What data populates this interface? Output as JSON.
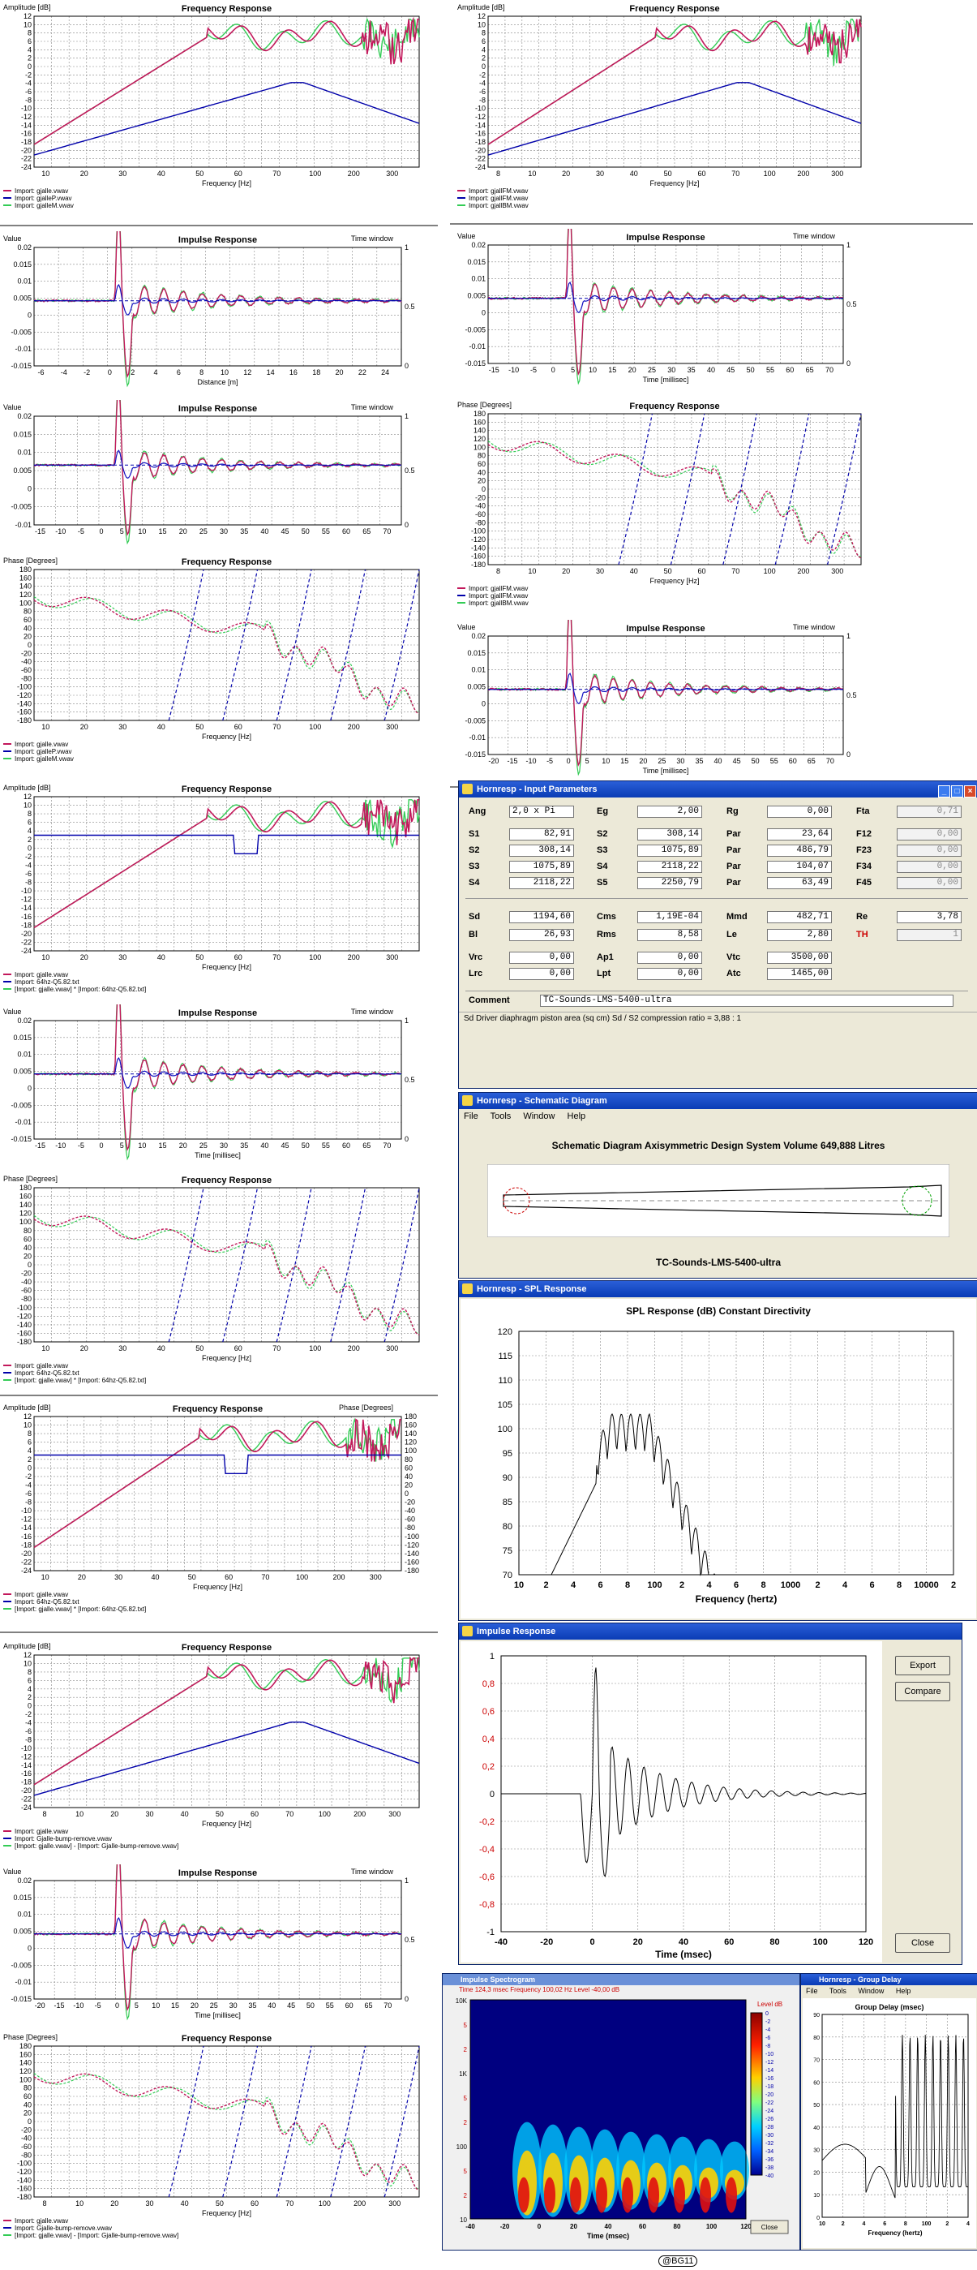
{
  "colors": {
    "pink": "#c2185b",
    "green": "#33cc55",
    "blue": "#1010c0",
    "dblue": "#0000aa",
    "grid": "#555555"
  },
  "charts_left": [
    {
      "id": "L1",
      "title": "Frequency Response",
      "ylabel": "Amplitude [dB]",
      "xlabel": "Frequency [Hz]",
      "yticks": [
        "12",
        "10",
        "8",
        "6",
        "4",
        "2",
        "0",
        "-2",
        "-4",
        "-6",
        "-8",
        "-10",
        "-12",
        "-14",
        "-16",
        "-18",
        "-20",
        "-22",
        "-24"
      ],
      "xticks": [
        "10",
        "20",
        "30",
        "40",
        "50",
        "60",
        "70",
        "100",
        "200",
        "300"
      ],
      "legend": [
        "Import: gjalle.vwav",
        "Import: gjalleP.vwav",
        "Import: gjalleM.vwav"
      ]
    },
    {
      "id": "L2",
      "title": "Impulse Response",
      "ylabel": "Value",
      "y2label": "Time window",
      "xlabel": "Distance [m]",
      "yticks": [
        "0.02",
        "0.015",
        "0.01",
        "0.005",
        "0",
        "-0.005",
        "-0.01",
        "-0.015"
      ],
      "xticks": [
        "-6",
        "-4",
        "-2",
        "0",
        "2",
        "4",
        "6",
        "8",
        "10",
        "12",
        "14",
        "16",
        "18",
        "20",
        "22",
        "24"
      ],
      "y2ticks": [
        "1",
        "0.5",
        "0"
      ]
    },
    {
      "id": "L3",
      "title": "Impulse Response",
      "ylabel": "Value",
      "y2label": "Time window",
      "xlabel": "",
      "yticks": [
        "0.02",
        "0.015",
        "0.01",
        "0.005",
        "0",
        "-0.005",
        "-0.01"
      ],
      "xticks": [
        "-15",
        "-10",
        "-5",
        "0",
        "5",
        "10",
        "15",
        "20",
        "25",
        "30",
        "35",
        "40",
        "45",
        "50",
        "55",
        "60",
        "65",
        "70"
      ],
      "y2ticks": [
        "1",
        "0.5",
        "0"
      ]
    },
    {
      "id": "L4",
      "title": "Frequency Response",
      "ylabel": "Phase [Degrees]",
      "xlabel": "Frequency [Hz]",
      "yticks": [
        "180",
        "160",
        "140",
        "120",
        "100",
        "80",
        "60",
        "40",
        "20",
        "0",
        "-20",
        "-40",
        "-60",
        "-80",
        "-100",
        "-120",
        "-140",
        "-160",
        "-180"
      ],
      "xticks": [
        "10",
        "20",
        "30",
        "40",
        "50",
        "60",
        "70",
        "100",
        "200",
        "300"
      ],
      "legend": [
        "Import: gjalle.vwav",
        "Import: gjalleP.vwav",
        "Import: gjalleM.vwav"
      ]
    },
    {
      "id": "L5",
      "title": "Frequency Response",
      "ylabel": "Amplitude [dB]",
      "xlabel": "Frequency [Hz]",
      "yticks": [
        "12",
        "10",
        "8",
        "6",
        "4",
        "2",
        "0",
        "-2",
        "-4",
        "-6",
        "-8",
        "-10",
        "-12",
        "-14",
        "-16",
        "-18",
        "-20",
        "-22",
        "-24"
      ],
      "xticks": [
        "10",
        "20",
        "30",
        "40",
        "50",
        "60",
        "70",
        "100",
        "200",
        "300"
      ],
      "legend": [
        "Import: gjalle.vwav",
        "Import: 64hz-Q5.82.txt",
        "[Import: gjalle.vwav] * [Import: 64hz-Q5.82.txt]"
      ]
    },
    {
      "id": "L6",
      "title": "Impulse Response",
      "ylabel": "Value",
      "y2label": "Time window",
      "xlabel": "Time [millisec]",
      "yticks": [
        "0.02",
        "0.015",
        "0.01",
        "0.005",
        "0",
        "-0.005",
        "-0.01",
        "-0.015"
      ],
      "xticks": [
        "-15",
        "-10",
        "-5",
        "0",
        "5",
        "10",
        "15",
        "20",
        "25",
        "30",
        "35",
        "40",
        "45",
        "50",
        "55",
        "60",
        "65",
        "70"
      ],
      "y2ticks": [
        "1",
        "0.5",
        "0"
      ]
    },
    {
      "id": "L7",
      "title": "Frequency Response",
      "ylabel": "Phase [Degrees]",
      "xlabel": "Frequency [Hz]",
      "yticks": [
        "180",
        "160",
        "140",
        "120",
        "100",
        "80",
        "60",
        "40",
        "20",
        "0",
        "-20",
        "-40",
        "-60",
        "-80",
        "-100",
        "-120",
        "-140",
        "-160",
        "-180"
      ],
      "xticks": [
        "10",
        "20",
        "30",
        "40",
        "50",
        "60",
        "70",
        "100",
        "200",
        "300"
      ],
      "legend": [
        "Import: gjalle.vwav",
        "Import: 64hz-Q5.82.txt",
        "[Import: gjalle.vwav] * [Import: 64hz-Q5.82.txt]"
      ]
    },
    {
      "id": "L8",
      "title": "Frequency Response",
      "ylabel": "Amplitude [dB]",
      "y2label": "Phase [Degrees]",
      "xlabel": "Frequency [Hz]",
      "yticks": [
        "12",
        "10",
        "8",
        "6",
        "4",
        "2",
        "0",
        "-2",
        "-4",
        "-6",
        "-8",
        "-10",
        "-12",
        "-14",
        "-16",
        "-18",
        "-20",
        "-22",
        "-24"
      ],
      "y2ticks": [
        "180",
        "160",
        "140",
        "120",
        "100",
        "80",
        "60",
        "40",
        "20",
        "0",
        "-20",
        "-40",
        "-60",
        "-80",
        "-100",
        "-120",
        "-140",
        "-160",
        "-180"
      ],
      "xticks": [
        "10",
        "20",
        "30",
        "40",
        "50",
        "60",
        "70",
        "100",
        "200",
        "300"
      ],
      "legend": [
        "Import: gjalle.vwav",
        "Import: 64hz-Q5.82.txt",
        "[Import: gjalle.vwav] * [Import: 64hz-Q5.82.txt]"
      ]
    },
    {
      "id": "L9",
      "title": "Frequency Response",
      "ylabel": "Amplitude [dB]",
      "xlabel": "Frequency [Hz]",
      "yticks": [
        "12",
        "10",
        "8",
        "6",
        "4",
        "2",
        "0",
        "-2",
        "-4",
        "-6",
        "-8",
        "-10",
        "-12",
        "-14",
        "-16",
        "-18",
        "-20",
        "-22",
        "-24"
      ],
      "xticks": [
        "8",
        "10",
        "20",
        "30",
        "40",
        "50",
        "60",
        "70",
        "100",
        "200",
        "300"
      ],
      "legend": [
        "Import: gjalle.vwav",
        "Import: Gjalle-bump-remove.vwav",
        "[Import: gjalle.vwav] - [Import: Gjalle-bump-remove.vwav]"
      ]
    },
    {
      "id": "L10",
      "title": "Impulse Response",
      "ylabel": "Value",
      "y2label": "Time window",
      "xlabel": "Time [millisec]",
      "yticks": [
        "0.02",
        "0.015",
        "0.01",
        "0.005",
        "0",
        "-0.005",
        "-0.01",
        "-0.015"
      ],
      "xticks": [
        "-20",
        "-15",
        "-10",
        "-5",
        "0",
        "5",
        "10",
        "15",
        "20",
        "25",
        "30",
        "35",
        "40",
        "45",
        "50",
        "55",
        "60",
        "65",
        "70"
      ],
      "y2ticks": [
        "1",
        "0.5",
        "0"
      ]
    },
    {
      "id": "L11",
      "title": "Frequency Response",
      "ylabel": "Phase [Degrees]",
      "xlabel": "Frequency [Hz]",
      "yticks": [
        "180",
        "160",
        "140",
        "120",
        "100",
        "80",
        "60",
        "40",
        "20",
        "0",
        "-20",
        "-40",
        "-60",
        "-80",
        "-100",
        "-120",
        "-140",
        "-160",
        "-180"
      ],
      "xticks": [
        "8",
        "10",
        "20",
        "30",
        "40",
        "50",
        "60",
        "70",
        "100",
        "200",
        "300"
      ],
      "legend": [
        "Import: gjalle.vwav",
        "Import: Gjalle-bump-remove.vwav",
        "[Import: gjalle.vwav] - [Import: Gjalle-bump-remove.vwav]"
      ]
    }
  ],
  "charts_right": [
    {
      "id": "R1",
      "title": "Frequency Response",
      "ylabel": "Amplitude [dB]",
      "xlabel": "Frequency [Hz]",
      "yticks": [
        "12",
        "10",
        "8",
        "6",
        "4",
        "2",
        "0",
        "-2",
        "-4",
        "-6",
        "-8",
        "-10",
        "-12",
        "-14",
        "-16",
        "-18",
        "-20",
        "-22",
        "-24"
      ],
      "xticks": [
        "8",
        "10",
        "20",
        "30",
        "40",
        "50",
        "60",
        "70",
        "100",
        "200",
        "300"
      ],
      "legend": [
        "Import: gjallFM.vwav",
        "Import: gjallFM.vwav",
        "Import: gjallBM.vwav"
      ]
    },
    {
      "id": "R2",
      "title": "Impulse Response",
      "ylabel": "Value",
      "y2label": "Time window",
      "xlabel": "Time [millisec]",
      "yticks": [
        "0.02",
        "0.015",
        "0.01",
        "0.005",
        "0",
        "-0.005",
        "-0.01",
        "-0.015"
      ],
      "xticks": [
        "-15",
        "-10",
        "-5",
        "0",
        "5",
        "10",
        "15",
        "20",
        "25",
        "30",
        "35",
        "40",
        "45",
        "50",
        "55",
        "60",
        "65",
        "70"
      ],
      "y2ticks": [
        "1",
        "0.5",
        "0"
      ]
    },
    {
      "id": "R3",
      "title": "Frequency Response",
      "ylabel": "Phase [Degrees]",
      "xlabel": "Frequency [Hz]",
      "yticks": [
        "180",
        "160",
        "140",
        "120",
        "100",
        "80",
        "60",
        "40",
        "20",
        "0",
        "-20",
        "-40",
        "-60",
        "-80",
        "-100",
        "-120",
        "-140",
        "-160",
        "-180"
      ],
      "xticks": [
        "8",
        "10",
        "20",
        "30",
        "40",
        "50",
        "60",
        "70",
        "100",
        "200",
        "300"
      ],
      "legend": [
        "Import: gjallFM.vwav",
        "Import: gjallFM.vwav",
        "Import: gjallBM.vwav"
      ]
    },
    {
      "id": "R4",
      "title": "Impulse Response",
      "ylabel": "Value",
      "y2label": "Time window",
      "xlabel": "Time [millisec]",
      "yticks": [
        "0.02",
        "0.015",
        "0.01",
        "0.005",
        "0",
        "-0.005",
        "-0.01",
        "-0.015"
      ],
      "xticks": [
        "-20",
        "-15",
        "-10",
        "-5",
        "0",
        "5",
        "10",
        "15",
        "20",
        "25",
        "30",
        "35",
        "40",
        "45",
        "50",
        "55",
        "60",
        "65",
        "70"
      ],
      "y2ticks": [
        "1",
        "0.5",
        "0"
      ]
    }
  ],
  "input_params": {
    "title": "Hornresp - Input Parameters",
    "rows": [
      [
        [
          "Ang",
          "2,0 x Pi"
        ],
        [
          "Eg",
          "2,00"
        ],
        [
          "Rg",
          "0,00"
        ],
        [
          "Fta",
          "0,71"
        ]
      ],
      [
        [
          "S1",
          "82,91"
        ],
        [
          "S2",
          "308,14"
        ],
        [
          "Par",
          "23,64"
        ],
        [
          "F12",
          "0,00"
        ]
      ],
      [
        [
          "S2",
          "308,14"
        ],
        [
          "S3",
          "1075,89"
        ],
        [
          "Par",
          "486,79"
        ],
        [
          "F23",
          "0,00"
        ]
      ],
      [
        [
          "S3",
          "1075,89"
        ],
        [
          "S4",
          "2118,22"
        ],
        [
          "Par",
          "104,07"
        ],
        [
          "F34",
          "0,00"
        ]
      ],
      [
        [
          "S4",
          "2118,22"
        ],
        [
          "S5",
          "2250,79"
        ],
        [
          "Par",
          "63,49"
        ],
        [
          "F45",
          "0,00"
        ]
      ],
      [
        [
          "Sd",
          "1194,60"
        ],
        [
          "Cms",
          "1,19E-04"
        ],
        [
          "Mmd",
          "482,71"
        ],
        [
          "Re",
          "3,78"
        ]
      ],
      [
        [
          "Bl",
          "26,93"
        ],
        [
          "Rms",
          "8,58"
        ],
        [
          "Le",
          "2,80"
        ],
        [
          "TH",
          "1"
        ]
      ],
      [
        [
          "Vrc",
          "0,00"
        ],
        [
          "Ap1",
          "0,00"
        ],
        [
          "Vtc",
          "3500,00"
        ],
        [
          "",
          ""
        ]
      ],
      [
        [
          "Lrc",
          "0,00"
        ],
        [
          "Lpt",
          "0,00"
        ],
        [
          "Atc",
          "1465,00"
        ],
        [
          "",
          ""
        ]
      ]
    ],
    "comment_label": "Comment",
    "comment_value": "TC-Sounds-LMS-5400-ultra",
    "status": "Sd   Driver diaphragm piston area  (sq cm)   Sd / S2 compression ratio = 3,88 : 1"
  },
  "schematic": {
    "title": "Hornresp - Schematic Diagram",
    "menu": [
      "File",
      "Tools",
      "Window",
      "Help"
    ],
    "heading": "Schematic Diagram   Axisymmetric Design   System Volume 649,888 Litres",
    "caption": "TC-Sounds-LMS-5400-ultra"
  },
  "spl": {
    "title": "Hornresp - SPL Response",
    "heading": "SPL Response  (dB)   Constant Directivity",
    "xlabel": "Frequency (hertz)",
    "yticks": [
      "120",
      "115",
      "110",
      "105",
      "100",
      "95",
      "90",
      "85",
      "80",
      "75",
      "70"
    ],
    "xticks": [
      "10",
      "2",
      "4",
      "6",
      "8",
      "100",
      "2",
      "4",
      "6",
      "8",
      "1000",
      "2",
      "4",
      "6",
      "8",
      "10000",
      "2"
    ]
  },
  "impulse_win": {
    "title": "Impulse Response",
    "xlabel": "Time (msec)",
    "yticks": [
      "1",
      "0,8",
      "0,6",
      "0,4",
      "0,2",
      "0",
      "-0,2",
      "-0,4",
      "-0,6",
      "-0,8",
      "-1"
    ],
    "xticks": [
      "-40",
      "-20",
      "0",
      "20",
      "40",
      "60",
      "80",
      "100",
      "120"
    ],
    "export": "Export",
    "compare": "Compare",
    "close": "Close"
  },
  "spectrogram": {
    "title": "Impulse Spectrogram",
    "status": "Time  124,3 msec    Frequency  100,02 Hz    Level  -40,00 dB",
    "xlabel": "Time (msec)",
    "level_label": "Level  dB",
    "yticks": [
      "10K",
      "5",
      "2",
      "1K",
      "5",
      "2",
      "100",
      "5",
      "2",
      "10"
    ],
    "xticks": [
      "-40",
      "-20",
      "0",
      "20",
      "40",
      "60",
      "80",
      "100",
      "120"
    ],
    "levels": [
      "0",
      "-2",
      "-4",
      "-6",
      "-8",
      "-10",
      "-12",
      "-14",
      "-16",
      "-18",
      "-20",
      "-22",
      "-24",
      "-26",
      "-28",
      "-30",
      "-32",
      "-34",
      "-36",
      "-38",
      "-40"
    ],
    "close": "Close"
  },
  "group_delay": {
    "title": "Hornresp - Group Delay",
    "menu": [
      "File",
      "Tools",
      "Window",
      "Help"
    ],
    "heading": "Group Delay (msec)",
    "xlabel": "Frequency (hertz)",
    "yticks": [
      "90",
      "80",
      "70",
      "60",
      "50",
      "40",
      "30",
      "20",
      "10",
      "0"
    ],
    "xticks": [
      "10",
      "2",
      "4",
      "6",
      "8",
      "100",
      "2",
      "4"
    ]
  },
  "footer": "@BG11"
}
